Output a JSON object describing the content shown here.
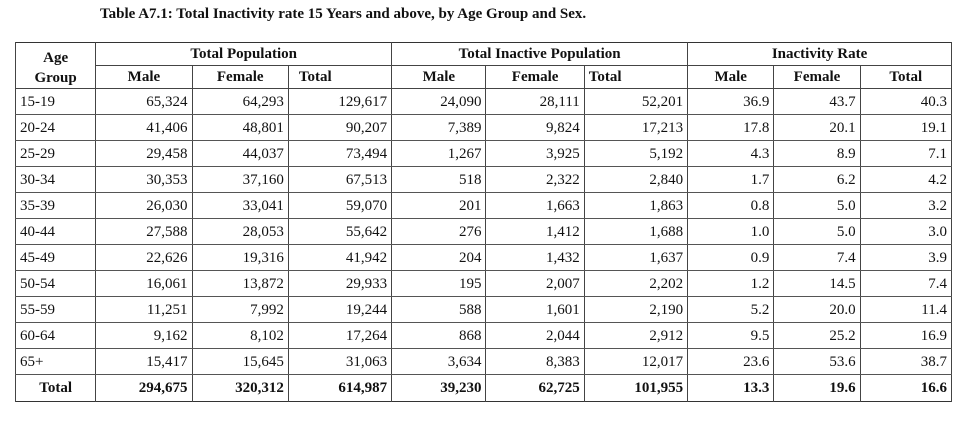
{
  "title": "Table A7.1: Total Inactivity rate 15 Years and above, by Age Group and Sex.",
  "headers": {
    "age_line1": "Age",
    "age_line2": "Group",
    "groups": [
      "Total Population",
      "Total Inactive Population",
      "Inactivity Rate"
    ],
    "sub": [
      "Male",
      "Female",
      "Total",
      "Male",
      "Female",
      "Total",
      "Male",
      "Female",
      "Total"
    ]
  },
  "rows": [
    [
      "15-19",
      "65,324",
      "64,293",
      "129,617",
      "24,090",
      "28,111",
      "52,201",
      "36.9",
      "43.7",
      "40.3"
    ],
    [
      "20-24",
      "41,406",
      "48,801",
      "90,207",
      "7,389",
      "9,824",
      "17,213",
      "17.8",
      "20.1",
      "19.1"
    ],
    [
      "25-29",
      "29,458",
      "44,037",
      "73,494",
      "1,267",
      "3,925",
      "5,192",
      "4.3",
      "8.9",
      "7.1"
    ],
    [
      "30-34",
      "30,353",
      "37,160",
      "67,513",
      "518",
      "2,322",
      "2,840",
      "1.7",
      "6.2",
      "4.2"
    ],
    [
      "35-39",
      "26,030",
      "33,041",
      "59,070",
      "201",
      "1,663",
      "1,863",
      "0.8",
      "5.0",
      "3.2"
    ],
    [
      "40-44",
      "27,588",
      "28,053",
      "55,642",
      "276",
      "1,412",
      "1,688",
      "1.0",
      "5.0",
      "3.0"
    ],
    [
      "45-49",
      "22,626",
      "19,316",
      "41,942",
      "204",
      "1,432",
      "1,637",
      "0.9",
      "7.4",
      "3.9"
    ],
    [
      "50-54",
      "16,061",
      "13,872",
      "29,933",
      "195",
      "2,007",
      "2,202",
      "1.2",
      "14.5",
      "7.4"
    ],
    [
      "55-59",
      "11,251",
      "7,992",
      "19,244",
      "588",
      "1,601",
      "2,190",
      "5.2",
      "20.0",
      "11.4"
    ],
    [
      "60-64",
      "9,162",
      "8,102",
      "17,264",
      "868",
      "2,044",
      "2,912",
      "9.5",
      "25.2",
      "16.9"
    ],
    [
      "65+",
      "15,417",
      "15,645",
      "31,063",
      "3,634",
      "8,383",
      "12,017",
      "23.6",
      "53.6",
      "38.7"
    ]
  ],
  "total": [
    "Total",
    "294,675",
    "320,312",
    "614,987",
    "39,230",
    "62,725",
    "101,955",
    "13.3",
    "19.6",
    "16.6"
  ]
}
